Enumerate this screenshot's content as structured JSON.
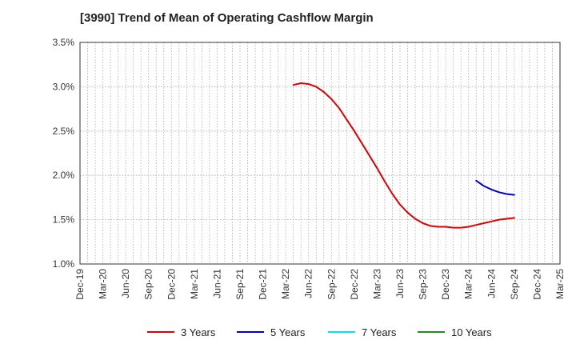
{
  "chart_data": {
    "type": "line",
    "title": "[3990]  Trend of Mean of Operating Cashflow Margin",
    "xlabel": "",
    "ylabel": "",
    "x_tick_labels": [
      "Dec-19",
      "Mar-20",
      "Jun-20",
      "Sep-20",
      "Dec-20",
      "Mar-21",
      "Jun-21",
      "Sep-21",
      "Dec-21",
      "Mar-22",
      "Jun-22",
      "Sep-22",
      "Dec-22",
      "Mar-23",
      "Jun-23",
      "Sep-23",
      "Dec-23",
      "Mar-24",
      "Jun-24",
      "Sep-24",
      "Dec-24",
      "Mar-25"
    ],
    "y_tick_labels": [
      "1.0%",
      "1.5%",
      "2.0%",
      "2.5%",
      "3.0%",
      "3.5%"
    ],
    "ylim": [
      1.0,
      3.5
    ],
    "xlim": [
      "2019-12",
      "2025-03"
    ],
    "y_unit": "%",
    "grid": true,
    "legend_position": "bottom",
    "series": [
      {
        "name": "3 Years",
        "color": "#dd0000",
        "points": [
          [
            "2022-04",
            3.02
          ],
          [
            "2022-05",
            3.04
          ],
          [
            "2022-06",
            3.03
          ],
          [
            "2022-07",
            3.0
          ],
          [
            "2022-08",
            2.94
          ],
          [
            "2022-09",
            2.86
          ],
          [
            "2022-10",
            2.76
          ],
          [
            "2022-11",
            2.63
          ],
          [
            "2022-12",
            2.5
          ],
          [
            "2023-01",
            2.36
          ],
          [
            "2023-02",
            2.22
          ],
          [
            "2023-03",
            2.08
          ],
          [
            "2023-04",
            1.93
          ],
          [
            "2023-05",
            1.79
          ],
          [
            "2023-06",
            1.67
          ],
          [
            "2023-07",
            1.58
          ],
          [
            "2023-08",
            1.51
          ],
          [
            "2023-09",
            1.46
          ],
          [
            "2023-10",
            1.43
          ],
          [
            "2023-11",
            1.42
          ],
          [
            "2023-12",
            1.42
          ],
          [
            "2024-01",
            1.41
          ],
          [
            "2024-02",
            1.41
          ],
          [
            "2024-03",
            1.42
          ],
          [
            "2024-04",
            1.44
          ],
          [
            "2024-05",
            1.46
          ],
          [
            "2024-06",
            1.48
          ],
          [
            "2024-07",
            1.5
          ],
          [
            "2024-08",
            1.51
          ],
          [
            "2024-09",
            1.52
          ]
        ]
      },
      {
        "name": "5 Years",
        "color": "#0000cc",
        "points": [
          [
            "2024-04",
            1.94
          ],
          [
            "2024-05",
            1.88
          ],
          [
            "2024-06",
            1.84
          ],
          [
            "2024-07",
            1.81
          ],
          [
            "2024-08",
            1.79
          ],
          [
            "2024-09",
            1.78
          ]
        ]
      },
      {
        "name": "7 Years",
        "color": "#00e5ee",
        "points": []
      },
      {
        "name": "10 Years",
        "color": "#228b22",
        "points": []
      }
    ]
  }
}
